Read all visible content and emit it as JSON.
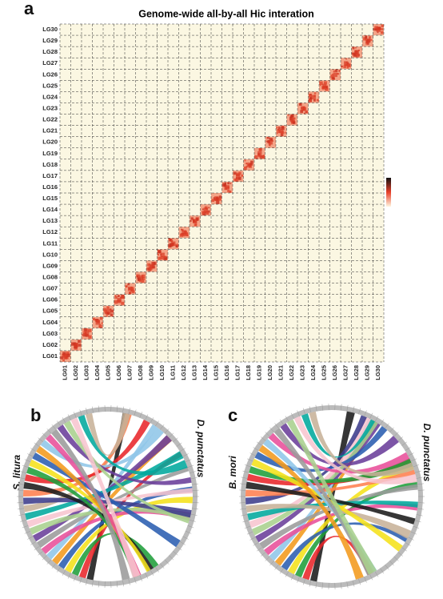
{
  "panels": [
    {
      "label": "a",
      "title": "Genome-wide all-by-all Hic interation",
      "linkage_groups": [
        "LG01",
        "LG02",
        "LG03",
        "LG04",
        "LG05",
        "LG06",
        "LG07",
        "LG08",
        "LG09",
        "LG10",
        "LG11",
        "LG12",
        "LG13",
        "LG14",
        "LG15",
        "LG16",
        "LG17",
        "LG18",
        "LG19",
        "LG20",
        "LG21",
        "LG22",
        "LG23",
        "LG24",
        "LG25",
        "LG26",
        "LG27",
        "LG28",
        "LG29",
        "LG30"
      ]
    },
    {
      "label": "b",
      "species": [
        "S. litura",
        "D. punctatus"
      ]
    },
    {
      "label": "c",
      "species": [
        "B. mori",
        "D. punctatus"
      ]
    }
  ]
}
